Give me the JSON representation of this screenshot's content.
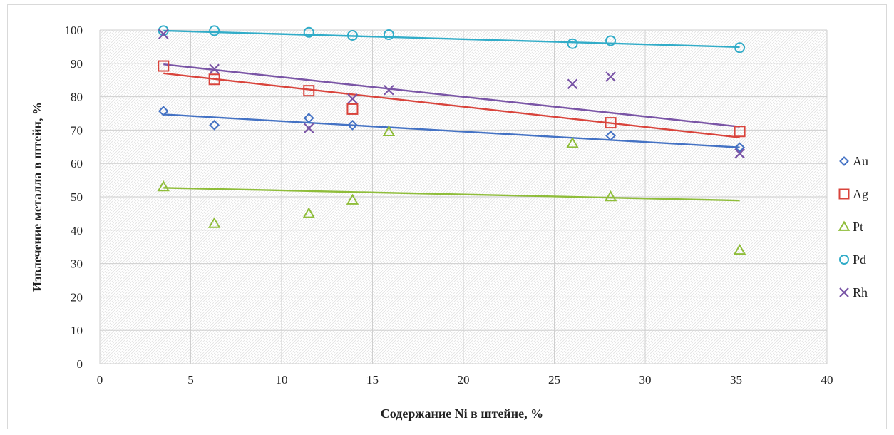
{
  "chart_data": {
    "type": "scatter",
    "title": "",
    "xlabel": "Содержание Ni в штейне, %",
    "ylabel": "Извлечение металла в штейн, %",
    "xlim": [
      0,
      40
    ],
    "ylim": [
      0,
      100
    ],
    "x_ticks": [
      0,
      5,
      10,
      15,
      20,
      25,
      30,
      35,
      40
    ],
    "y_ticks": [
      0,
      10,
      20,
      30,
      40,
      50,
      60,
      70,
      80,
      90,
      100
    ],
    "grid": true,
    "legend": "right",
    "trendlines": "linear",
    "series": [
      {
        "name": "Au",
        "marker": "diamond",
        "color": "#4472c4",
        "points": [
          [
            3.5,
            75.7
          ],
          [
            6.3,
            71.5
          ],
          [
            11.5,
            73.6
          ],
          [
            13.9,
            71.5
          ],
          [
            28.1,
            68.3
          ],
          [
            35.2,
            64.8
          ]
        ],
        "trend": [
          [
            3.5,
            74.7
          ],
          [
            35.2,
            64.8
          ]
        ]
      },
      {
        "name": "Ag",
        "marker": "square",
        "color": "#d9443c",
        "points": [
          [
            3.5,
            89.2
          ],
          [
            6.3,
            85.2
          ],
          [
            11.5,
            81.8
          ],
          [
            13.9,
            76.3
          ],
          [
            28.1,
            72.2
          ],
          [
            35.2,
            69.6
          ]
        ],
        "trend": [
          [
            3.5,
            87.0
          ],
          [
            35.2,
            67.8
          ]
        ]
      },
      {
        "name": "Pt",
        "marker": "triangle",
        "color": "#8fbd3a",
        "points": [
          [
            3.5,
            53.0
          ],
          [
            6.3,
            42.0
          ],
          [
            11.5,
            45.0
          ],
          [
            13.9,
            49.0
          ],
          [
            15.9,
            69.5
          ],
          [
            26.0,
            66.0
          ],
          [
            28.1,
            50.0
          ],
          [
            35.2,
            34.0
          ]
        ],
        "trend": [
          [
            3.5,
            52.7
          ],
          [
            35.2,
            48.9
          ]
        ]
      },
      {
        "name": "Pd",
        "marker": "circle",
        "color": "#31acc8",
        "points": [
          [
            3.5,
            99.8
          ],
          [
            6.3,
            99.8
          ],
          [
            11.5,
            99.3
          ],
          [
            13.9,
            98.4
          ],
          [
            15.9,
            98.6
          ],
          [
            26.0,
            95.9
          ],
          [
            28.1,
            96.8
          ],
          [
            35.2,
            94.7
          ]
        ],
        "trend": [
          [
            3.5,
            99.8
          ],
          [
            35.2,
            94.9
          ]
        ]
      },
      {
        "name": "Rh",
        "marker": "x",
        "color": "#7a55a6",
        "points": [
          [
            3.5,
            98.8
          ],
          [
            6.3,
            88.3
          ],
          [
            11.5,
            70.6
          ],
          [
            13.9,
            79.4
          ],
          [
            15.9,
            82.0
          ],
          [
            26.0,
            83.8
          ],
          [
            28.1,
            86.0
          ],
          [
            35.2,
            63.0
          ]
        ],
        "trend": [
          [
            3.5,
            89.7
          ],
          [
            35.2,
            71.0
          ]
        ]
      }
    ]
  }
}
